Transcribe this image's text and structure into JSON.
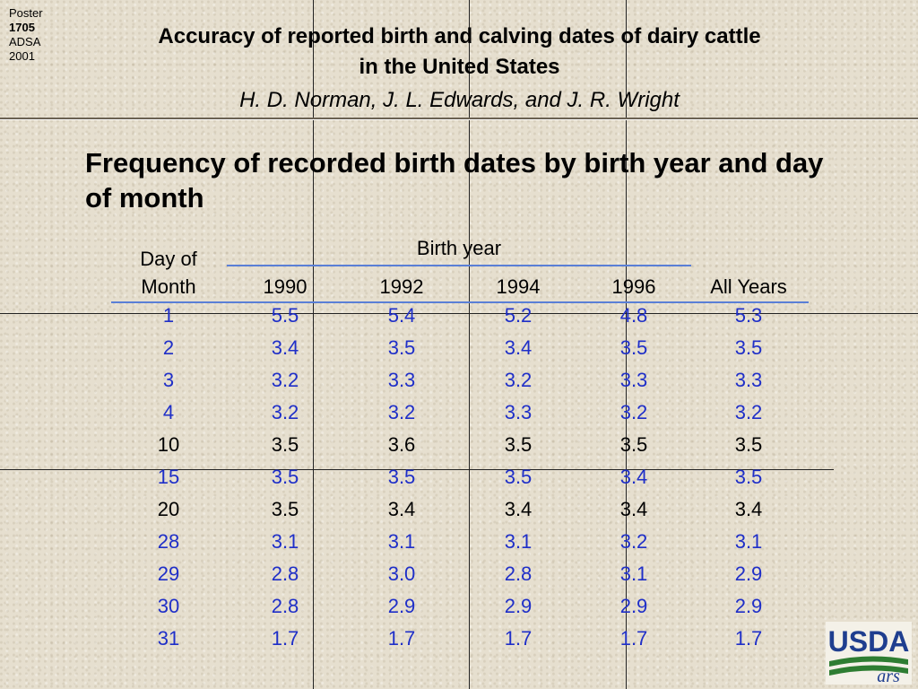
{
  "poster": {
    "line1": "Poster",
    "line2": "1705",
    "line3": "ADSA",
    "line4": "2001"
  },
  "title_line1": "Accuracy of reported birth and calving dates of dairy cattle",
  "title_line2": "in the United States",
  "authors": "H. D. Norman, J. L. Edwards, and J. R. Wright",
  "subtitle": "Frequency of recorded birth dates by birth year and day of month",
  "table": {
    "birth_year_label": "Birth year",
    "day_label_line1": "Day of",
    "day_label_line2": "Month",
    "columns": [
      "1990",
      "1992",
      "1994",
      "1996",
      "All Years"
    ],
    "rows": [
      {
        "day": "1",
        "values": [
          "5.5",
          "5.4",
          "5.2",
          "4.8",
          "5.3"
        ],
        "highlight": true
      },
      {
        "day": "2",
        "values": [
          "3.4",
          "3.5",
          "3.4",
          "3.5",
          "3.5"
        ],
        "highlight": true
      },
      {
        "day": "3",
        "values": [
          "3.2",
          "3.3",
          "3.2",
          "3.3",
          "3.3"
        ],
        "highlight": true
      },
      {
        "day": "4",
        "values": [
          "3.2",
          "3.2",
          "3.3",
          "3.2",
          "3.2"
        ],
        "highlight": true
      },
      {
        "day": "10",
        "values": [
          "3.5",
          "3.6",
          "3.5",
          "3.5",
          "3.5"
        ],
        "highlight": false
      },
      {
        "day": "15",
        "values": [
          "3.5",
          "3.5",
          "3.5",
          "3.4",
          "3.5"
        ],
        "highlight": true
      },
      {
        "day": "20",
        "values": [
          "3.5",
          "3.4",
          "3.4",
          "3.4",
          "3.4"
        ],
        "highlight": false
      },
      {
        "day": "28",
        "values": [
          "3.1",
          "3.1",
          "3.1",
          "3.2",
          "3.1"
        ],
        "highlight": true
      },
      {
        "day": "29",
        "values": [
          "2.8",
          "3.0",
          "2.8",
          "3.1",
          "2.9"
        ],
        "highlight": true
      },
      {
        "day": "30",
        "values": [
          "2.8",
          "2.9",
          "2.9",
          "2.9",
          "2.9"
        ],
        "highlight": true
      },
      {
        "day": "31",
        "values": [
          "1.7",
          "1.7",
          "1.7",
          "1.7",
          "1.7"
        ],
        "highlight": true
      }
    ]
  },
  "logo": {
    "text": "USDA",
    "subtext": "ars",
    "color_blue": "#1f3e8f",
    "color_green": "#2e7d32"
  },
  "colors": {
    "highlight_text": "#1f2fc8",
    "rule": "#5a7fd6"
  }
}
